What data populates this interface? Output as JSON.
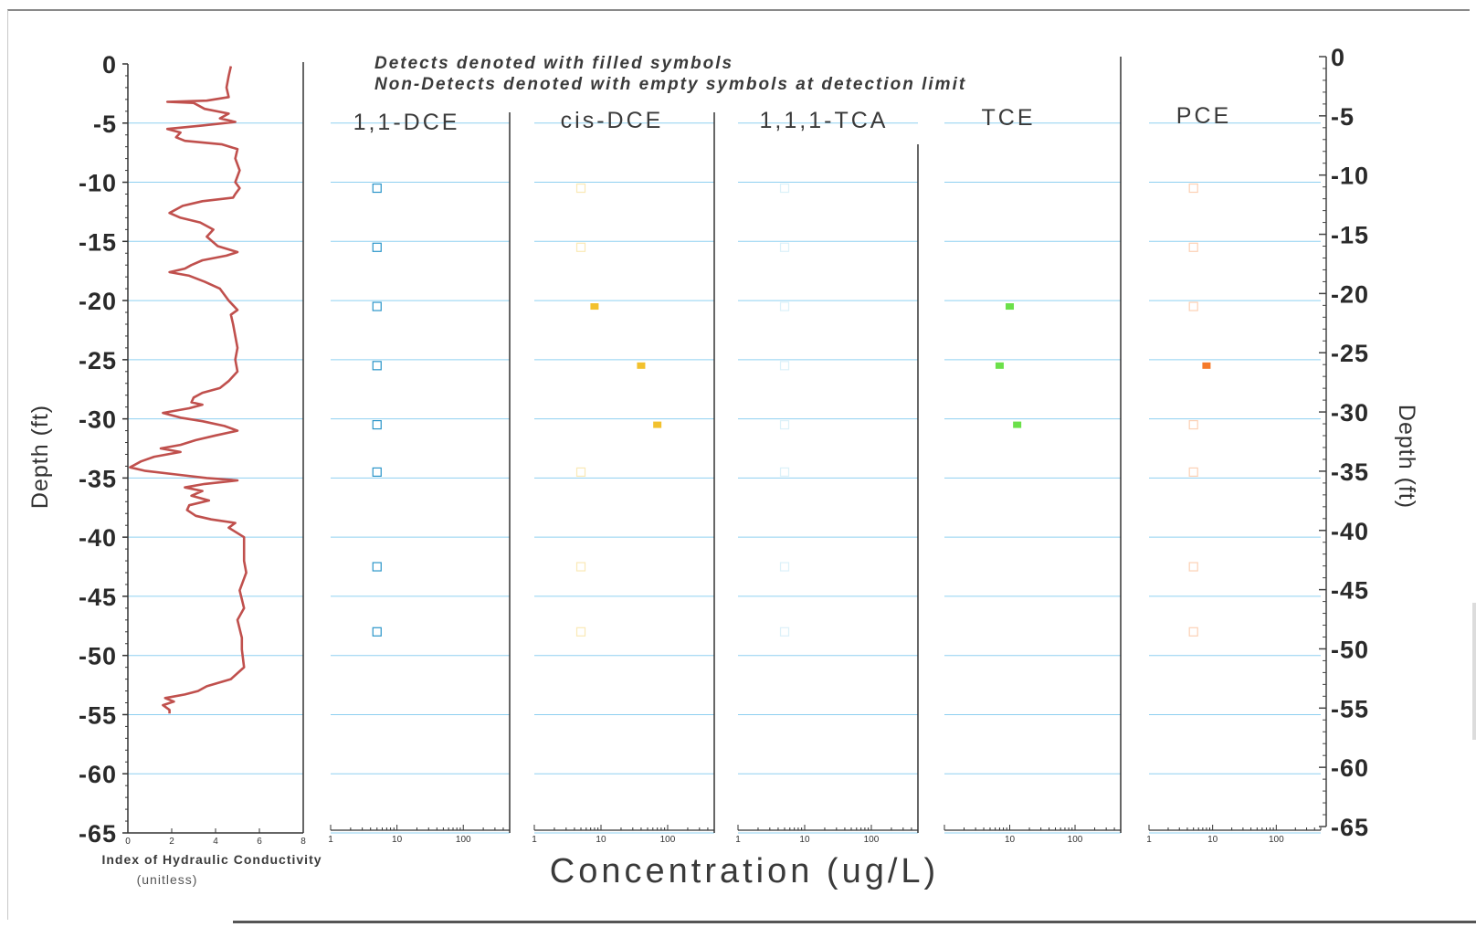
{
  "chart_data": {
    "type": "scatter",
    "depth_axis": {
      "label_left": "Depth (ft)",
      "label_right": "Depth (ft)",
      "ticks_left": [
        "0",
        "-5",
        "-10",
        "-15",
        "-20",
        "-25",
        "-30",
        "-35",
        "-40",
        "-45",
        "-50",
        "-55",
        "-60",
        "-65"
      ],
      "ticks_right": [
        "0",
        "-5",
        "-10",
        "-15",
        "-20",
        "-25",
        "-30",
        "-35",
        "-40",
        "-45",
        "-50",
        "-55",
        "-60",
        "-65"
      ],
      "range": [
        -65,
        0
      ]
    },
    "notes": [
      "Detects denoted with filled symbols",
      "Non-Detects denoted with empty symbols at detection limit"
    ],
    "hydraulic_conductivity": {
      "xlabel": "Index of Hydraulic Conductivity",
      "xunit": "(unitless)",
      "xlim": [
        0,
        8
      ],
      "xticks": [
        "0",
        "2",
        "4",
        "6",
        "8"
      ],
      "color": "#c0504d",
      "profile": [
        [
          4.7,
          -0.2
        ],
        [
          4.6,
          -1.0
        ],
        [
          4.5,
          -2.0
        ],
        [
          4.6,
          -2.8
        ],
        [
          3.6,
          -3.1
        ],
        [
          1.8,
          -3.2
        ],
        [
          3.0,
          -3.3
        ],
        [
          3.5,
          -3.8
        ],
        [
          4.6,
          -4.2
        ],
        [
          4.2,
          -4.6
        ],
        [
          4.9,
          -4.9
        ],
        [
          3.4,
          -5.2
        ],
        [
          1.8,
          -5.5
        ],
        [
          2.4,
          -5.8
        ],
        [
          2.2,
          -6.2
        ],
        [
          2.6,
          -6.5
        ],
        [
          4.3,
          -6.8
        ],
        [
          5.0,
          -7.2
        ],
        [
          4.9,
          -8.0
        ],
        [
          5.1,
          -9.0
        ],
        [
          4.9,
          -10.0
        ],
        [
          5.1,
          -10.5
        ],
        [
          4.9,
          -11.0
        ],
        [
          4.8,
          -11.3
        ],
        [
          3.4,
          -11.6
        ],
        [
          2.5,
          -12.0
        ],
        [
          1.9,
          -12.6
        ],
        [
          2.4,
          -13.0
        ],
        [
          3.3,
          -13.4
        ],
        [
          3.9,
          -14.0
        ],
        [
          3.6,
          -14.6
        ],
        [
          4.1,
          -15.4
        ],
        [
          5.0,
          -15.9
        ],
        [
          4.5,
          -16.2
        ],
        [
          3.4,
          -16.6
        ],
        [
          2.9,
          -17.0
        ],
        [
          2.6,
          -17.3
        ],
        [
          1.9,
          -17.6
        ],
        [
          2.8,
          -17.9
        ],
        [
          3.5,
          -18.4
        ],
        [
          4.2,
          -19.0
        ],
        [
          4.6,
          -20.0
        ],
        [
          5.0,
          -20.8
        ],
        [
          4.7,
          -21.2
        ],
        [
          4.8,
          -22.0
        ],
        [
          4.9,
          -23.0
        ],
        [
          5.0,
          -24.0
        ],
        [
          4.9,
          -25.0
        ],
        [
          5.0,
          -26.0
        ],
        [
          4.6,
          -26.8
        ],
        [
          4.2,
          -27.4
        ],
        [
          3.4,
          -27.8
        ],
        [
          3.0,
          -28.2
        ],
        [
          2.9,
          -28.6
        ],
        [
          3.4,
          -28.8
        ],
        [
          2.8,
          -29.1
        ],
        [
          1.6,
          -29.5
        ],
        [
          2.4,
          -29.9
        ],
        [
          3.4,
          -30.2
        ],
        [
          4.4,
          -30.6
        ],
        [
          5.0,
          -31.0
        ],
        [
          4.0,
          -31.4
        ],
        [
          3.1,
          -31.8
        ],
        [
          2.4,
          -32.2
        ],
        [
          1.5,
          -32.5
        ],
        [
          2.4,
          -32.8
        ],
        [
          1.2,
          -33.2
        ],
        [
          0.6,
          -33.6
        ],
        [
          0.1,
          -34.1
        ],
        [
          0.8,
          -34.4
        ],
        [
          2.2,
          -34.7
        ],
        [
          3.6,
          -35.0
        ],
        [
          5.0,
          -35.2
        ],
        [
          3.5,
          -35.5
        ],
        [
          2.6,
          -35.8
        ],
        [
          3.4,
          -36.1
        ],
        [
          2.9,
          -36.5
        ],
        [
          3.7,
          -36.9
        ],
        [
          2.8,
          -37.3
        ],
        [
          2.7,
          -37.7
        ],
        [
          3.1,
          -38.2
        ],
        [
          3.8,
          -38.5
        ],
        [
          4.9,
          -38.8
        ],
        [
          4.6,
          -39.2
        ],
        [
          5.3,
          -40.0
        ],
        [
          5.3,
          -42.0
        ],
        [
          5.4,
          -43.0
        ],
        [
          5.1,
          -44.5
        ],
        [
          5.3,
          -46.0
        ],
        [
          5.0,
          -47.0
        ],
        [
          5.2,
          -48.5
        ],
        [
          5.2,
          -49.5
        ],
        [
          5.3,
          -51.0
        ],
        [
          4.7,
          -52.0
        ],
        [
          3.6,
          -52.6
        ],
        [
          3.2,
          -53.0
        ],
        [
          2.6,
          -53.3
        ],
        [
          1.7,
          -53.6
        ],
        [
          2.1,
          -53.9
        ],
        [
          1.6,
          -54.2
        ],
        [
          1.9,
          -54.6
        ],
        [
          1.9,
          -54.9
        ]
      ]
    },
    "concentration_axis": {
      "label": "Concentration (ug/L)",
      "scale": "log",
      "xlim": [
        1,
        500
      ],
      "tick_labels": [
        "1",
        "10",
        "100"
      ]
    },
    "panels": [
      {
        "name": "1,1-DCE",
        "color": "#2a95c9",
        "points": [
          {
            "depth": -10.5,
            "conc": 5,
            "detect": false
          },
          {
            "depth": -15.5,
            "conc": 5,
            "detect": false
          },
          {
            "depth": -20.5,
            "conc": 5,
            "detect": false
          },
          {
            "depth": -25.5,
            "conc": 5,
            "detect": false
          },
          {
            "depth": -30.5,
            "conc": 5,
            "detect": false
          },
          {
            "depth": -34.5,
            "conc": 5,
            "detect": false
          },
          {
            "depth": -42.5,
            "conc": 5,
            "detect": false
          },
          {
            "depth": -48.0,
            "conc": 5,
            "detect": false
          }
        ]
      },
      {
        "name": "cis-DCE",
        "color": "#f2c12e",
        "points": [
          {
            "depth": -10.5,
            "conc": 5,
            "detect": false
          },
          {
            "depth": -15.5,
            "conc": 5,
            "detect": false
          },
          {
            "depth": -20.5,
            "conc": 8,
            "detect": true
          },
          {
            "depth": -25.5,
            "conc": 40,
            "detect": true
          },
          {
            "depth": -30.5,
            "conc": 70,
            "detect": true
          },
          {
            "depth": -34.5,
            "conc": 5,
            "detect": false
          },
          {
            "depth": -42.5,
            "conc": 5,
            "detect": false
          },
          {
            "depth": -48.0,
            "conc": 5,
            "detect": false
          }
        ]
      },
      {
        "name": "1,1,1-TCA",
        "color": "#9ad6ee",
        "points": [
          {
            "depth": -10.5,
            "conc": 5,
            "detect": false
          },
          {
            "depth": -15.5,
            "conc": 5,
            "detect": false
          },
          {
            "depth": -20.5,
            "conc": 5,
            "detect": false
          },
          {
            "depth": -25.5,
            "conc": 5,
            "detect": false
          },
          {
            "depth": -30.5,
            "conc": 5,
            "detect": false
          },
          {
            "depth": -34.5,
            "conc": 5,
            "detect": false
          },
          {
            "depth": -42.5,
            "conc": 5,
            "detect": false
          },
          {
            "depth": -48.0,
            "conc": 5,
            "detect": false
          }
        ]
      },
      {
        "name": "TCE",
        "color": "#6be04a",
        "points": [
          {
            "depth": -20.5,
            "conc": 10,
            "detect": true
          },
          {
            "depth": -25.5,
            "conc": 7,
            "detect": true
          },
          {
            "depth": -30.5,
            "conc": 13,
            "detect": true
          }
        ]
      },
      {
        "name": "PCE",
        "color": "#f57a2a",
        "points": [
          {
            "depth": -10.5,
            "conc": 5,
            "detect": false
          },
          {
            "depth": -15.5,
            "conc": 5,
            "detect": false
          },
          {
            "depth": -20.5,
            "conc": 5,
            "detect": false
          },
          {
            "depth": -25.5,
            "conc": 8,
            "detect": true
          },
          {
            "depth": -30.5,
            "conc": 5,
            "detect": false
          },
          {
            "depth": -34.5,
            "conc": 5,
            "detect": false
          },
          {
            "depth": -42.5,
            "conc": 5,
            "detect": false
          },
          {
            "depth": -48.0,
            "conc": 5,
            "detect": false
          }
        ]
      }
    ]
  }
}
